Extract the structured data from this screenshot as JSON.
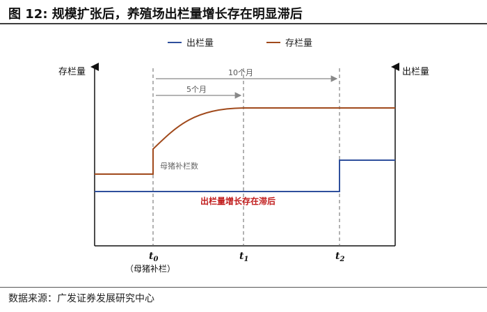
{
  "header": {
    "title": "图 12: 规模扩张后，养殖场出栏量增长存在明显滞后"
  },
  "legend": {
    "items": [
      {
        "label": "出栏量",
        "color": "#2e4f9c"
      },
      {
        "label": "存栏量",
        "color": "#a0491b"
      }
    ]
  },
  "axes": {
    "left_label": "存栏量",
    "right_label": "出栏量"
  },
  "annotations": {
    "span_10": "10个月",
    "span_5": "5个月",
    "sow_restock": "母猪补栏数",
    "lag_note": "出栏量增长存在滞后"
  },
  "time_marks": {
    "t0": {
      "base": "t",
      "sub": "0",
      "note": "（母猪补栏）"
    },
    "t1": {
      "base": "t",
      "sub": "1"
    },
    "t2": {
      "base": "t",
      "sub": "2"
    }
  },
  "colors": {
    "output_line": "#2e4f9c",
    "inventory_line": "#a0491b",
    "lag_note_color": "#c01b1b",
    "dashed": "#666666"
  },
  "footer": {
    "source": "数据来源：广发证券发展研究中心"
  }
}
